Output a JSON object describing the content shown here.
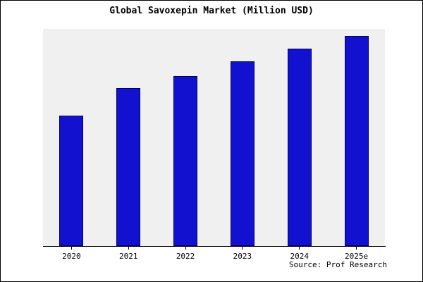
{
  "title": "Global Savoxepin Market (Million USD)",
  "source": "Source: Prof Research",
  "chart_data": {
    "type": "bar",
    "title": "Global Savoxepin Market (Million USD)",
    "categories": [
      "2020",
      "2021",
      "2022",
      "2023",
      "2024",
      "2025e"
    ],
    "values": [
      62,
      75,
      81,
      88,
      94,
      100
    ],
    "xlabel": "",
    "ylabel": "",
    "ylim": [
      0,
      100
    ],
    "grid": false,
    "legend_position": "none",
    "bar_color": "#1111cf",
    "bar_border_color": "#000060",
    "plot_background": "#f0f0f0",
    "source_note": "Source: Prof Research"
  }
}
